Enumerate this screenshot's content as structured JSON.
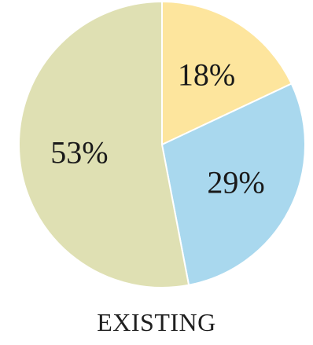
{
  "chart_data": {
    "type": "pie",
    "title": "EXISTING",
    "slices": [
      {
        "label": "18%",
        "value": 18,
        "color": "#fde59d"
      },
      {
        "label": "29%",
        "value": 29,
        "color": "#a9d8ee"
      },
      {
        "label": "53%",
        "value": 53,
        "color": "#dfe0b3"
      }
    ],
    "start_angle_deg": 0,
    "direction": "clockwise",
    "legend": "none",
    "slice_border_color": "#ffffff"
  }
}
